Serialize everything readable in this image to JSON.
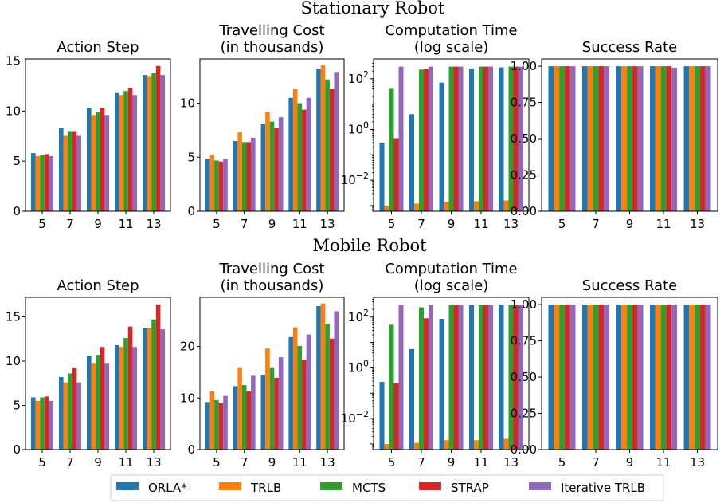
{
  "figure": {
    "row_titles": [
      "Stationary Robot",
      "Mobile Robot"
    ],
    "panel_titles": [
      [
        "Action Step"
      ],
      [
        "Travelling Cost",
        "(in thousands)"
      ],
      [
        "Computation Time",
        "(log scale)"
      ],
      [
        "Success Rate"
      ]
    ]
  },
  "legend": [
    {
      "name": "ORLA*",
      "color": "#1f77b4"
    },
    {
      "name": "TRLB",
      "color": "#ff7f0e"
    },
    {
      "name": "MCTS",
      "color": "#2ca02c"
    },
    {
      "name": "STRAP",
      "color": "#d62728"
    },
    {
      "name": "Iterative TRLB",
      "color": "#9467bd"
    }
  ],
  "chart_data": [
    {
      "type": "bar",
      "row": "Stationary Robot",
      "title": "Action Step",
      "xlabel": "",
      "ylabel": "",
      "categories": [
        "5",
        "7",
        "9",
        "11",
        "13"
      ],
      "ylim": [
        0,
        15.2
      ],
      "yticks": [
        0,
        5,
        10,
        15
      ],
      "ytick_labels": [
        "0",
        "5",
        "10",
        "15"
      ],
      "series": [
        {
          "name": "ORLA*",
          "values": [
            5.8,
            8.3,
            10.3,
            11.8,
            13.6
          ]
        },
        {
          "name": "TRLB",
          "values": [
            5.5,
            7.6,
            9.6,
            11.6,
            13.5
          ]
        },
        {
          "name": "MCTS",
          "values": [
            5.6,
            8.0,
            9.9,
            12.0,
            13.8
          ]
        },
        {
          "name": "STRAP",
          "values": [
            5.7,
            8.0,
            10.3,
            12.3,
            14.5
          ]
        },
        {
          "name": "Iterative TRLB",
          "values": [
            5.5,
            7.6,
            9.6,
            11.6,
            13.6
          ]
        }
      ]
    },
    {
      "type": "bar",
      "row": "Stationary Robot",
      "title": "Travelling Cost (in thousands)",
      "xlabel": "",
      "ylabel": "",
      "categories": [
        "5",
        "7",
        "9",
        "11",
        "13"
      ],
      "ylim": [
        0,
        14.1
      ],
      "yticks": [
        0,
        5,
        10
      ],
      "ytick_labels": [
        "0",
        "5",
        "10"
      ],
      "series": [
        {
          "name": "ORLA*",
          "values": [
            4.8,
            6.5,
            8.1,
            10.5,
            13.2
          ]
        },
        {
          "name": "TRLB",
          "values": [
            5.2,
            7.3,
            9.2,
            11.3,
            13.5
          ]
        },
        {
          "name": "MCTS",
          "values": [
            4.7,
            6.4,
            8.3,
            10.0,
            12.2
          ]
        },
        {
          "name": "STRAP",
          "values": [
            4.6,
            6.4,
            7.7,
            9.4,
            11.3
          ]
        },
        {
          "name": "Iterative TRLB",
          "values": [
            4.8,
            6.8,
            8.7,
            10.5,
            12.9
          ]
        }
      ]
    },
    {
      "type": "bar",
      "row": "Stationary Robot",
      "title": "Computation Time (log scale)",
      "xlabel": "",
      "ylabel": "",
      "yscale": "log",
      "categories": [
        "5",
        "7",
        "9",
        "11",
        "13"
      ],
      "ylim": [
        0.0006,
        600
      ],
      "yticks": [
        0.01,
        1,
        100
      ],
      "ytick_labels": [
        "10^-2",
        "10^0",
        "10^2"
      ],
      "series": [
        {
          "name": "ORLA*",
          "values": [
            0.3,
            4,
            70,
            250,
            280
          ]
        },
        {
          "name": "TRLB",
          "values": [
            0.001,
            0.0012,
            0.0014,
            0.0015,
            0.0016
          ]
        },
        {
          "name": "MCTS",
          "values": [
            40,
            230,
            300,
            300,
            300
          ]
        },
        {
          "name": "STRAP",
          "values": [
            0.45,
            240,
            300,
            300,
            300
          ]
        },
        {
          "name": "Iterative TRLB",
          "values": [
            300,
            300,
            300,
            300,
            300
          ]
        }
      ]
    },
    {
      "type": "bar",
      "row": "Stationary Robot",
      "title": "Success Rate",
      "xlabel": "",
      "ylabel": "",
      "categories": [
        "5",
        "7",
        "9",
        "11",
        "13"
      ],
      "ylim": [
        0,
        1.05
      ],
      "yticks": [
        0,
        0.25,
        0.5,
        0.75,
        1.0
      ],
      "ytick_labels": [
        "0.00",
        "0.25",
        "0.50",
        "0.75",
        "1.00"
      ],
      "series": [
        {
          "name": "ORLA*",
          "values": [
            1.0,
            1.0,
            1.0,
            1.0,
            1.0
          ]
        },
        {
          "name": "TRLB",
          "values": [
            1.0,
            1.0,
            1.0,
            1.0,
            1.0
          ]
        },
        {
          "name": "MCTS",
          "values": [
            1.0,
            1.0,
            1.0,
            1.0,
            1.0
          ]
        },
        {
          "name": "STRAP",
          "values": [
            1.0,
            1.0,
            1.0,
            1.0,
            1.0
          ]
        },
        {
          "name": "Iterative TRLB",
          "values": [
            1.0,
            1.0,
            1.0,
            0.99,
            1.0
          ]
        }
      ]
    },
    {
      "type": "bar",
      "row": "Mobile Robot",
      "title": "Action Step",
      "xlabel": "",
      "ylabel": "",
      "categories": [
        "5",
        "7",
        "9",
        "11",
        "13"
      ],
      "ylim": [
        0,
        17.2
      ],
      "yticks": [
        0,
        5,
        10,
        15
      ],
      "ytick_labels": [
        "0",
        "5",
        "10",
        "15"
      ],
      "series": [
        {
          "name": "ORLA*",
          "values": [
            5.9,
            8.2,
            10.6,
            11.8,
            13.7
          ]
        },
        {
          "name": "TRLB",
          "values": [
            5.5,
            7.6,
            9.7,
            11.6,
            13.7
          ]
        },
        {
          "name": "MCTS",
          "values": [
            5.9,
            8.6,
            10.7,
            12.6,
            14.7
          ]
        },
        {
          "name": "STRAP",
          "values": [
            6.0,
            9.2,
            11.6,
            13.9,
            16.4
          ]
        },
        {
          "name": "Iterative TRLB",
          "values": [
            5.5,
            7.6,
            9.7,
            11.6,
            13.6
          ]
        }
      ]
    },
    {
      "type": "bar",
      "row": "Mobile Robot",
      "title": "Travelling Cost (in thousands)",
      "xlabel": "",
      "ylabel": "",
      "categories": [
        "5",
        "7",
        "9",
        "11",
        "13"
      ],
      "ylim": [
        0,
        29.5
      ],
      "yticks": [
        0,
        10,
        20
      ],
      "ytick_labels": [
        "0",
        "10",
        "20"
      ],
      "series": [
        {
          "name": "ORLA*",
          "values": [
            9.2,
            12.3,
            14.5,
            21.8,
            27.8
          ]
        },
        {
          "name": "TRLB",
          "values": [
            11.3,
            15.8,
            19.6,
            23.7,
            28.3
          ]
        },
        {
          "name": "MCTS",
          "values": [
            9.6,
            12.5,
            15.8,
            20.1,
            24.4
          ]
        },
        {
          "name": "STRAP",
          "values": [
            9.0,
            11.3,
            13.9,
            17.4,
            21.5
          ]
        },
        {
          "name": "Iterative TRLB",
          "values": [
            10.4,
            14.3,
            17.9,
            22.3,
            26.8
          ]
        }
      ]
    },
    {
      "type": "bar",
      "row": "Mobile Robot",
      "title": "Computation Time (log scale)",
      "xlabel": "",
      "ylabel": "",
      "yscale": "log",
      "categories": [
        "5",
        "7",
        "9",
        "11",
        "13"
      ],
      "ylim": [
        0.0006,
        600
      ],
      "yticks": [
        0.01,
        1,
        100
      ],
      "ytick_labels": [
        "10^-2",
        "10^0",
        "10^2"
      ],
      "series": [
        {
          "name": "ORLA*",
          "values": [
            0.28,
            5.5,
            85,
            300,
            310
          ]
        },
        {
          "name": "TRLB",
          "values": [
            0.001,
            0.0011,
            0.0014,
            0.0014,
            0.0016
          ]
        },
        {
          "name": "MCTS",
          "values": [
            50,
            240,
            300,
            300,
            300
          ]
        },
        {
          "name": "STRAP",
          "values": [
            0.25,
            90,
            290,
            300,
            300
          ]
        },
        {
          "name": "Iterative TRLB",
          "values": [
            300,
            300,
            300,
            300,
            300
          ]
        }
      ]
    },
    {
      "type": "bar",
      "row": "Mobile Robot",
      "title": "Success Rate",
      "xlabel": "",
      "ylabel": "",
      "categories": [
        "5",
        "7",
        "9",
        "11",
        "13"
      ],
      "ylim": [
        0,
        1.05
      ],
      "yticks": [
        0,
        0.25,
        0.5,
        0.75,
        1.0
      ],
      "ytick_labels": [
        "0.00",
        "0.25",
        "0.50",
        "0.75",
        "1.00"
      ],
      "series": [
        {
          "name": "ORLA*",
          "values": [
            1.0,
            1.0,
            1.0,
            1.0,
            1.0
          ]
        },
        {
          "name": "TRLB",
          "values": [
            1.0,
            1.0,
            1.0,
            1.0,
            1.0
          ]
        },
        {
          "name": "MCTS",
          "values": [
            1.0,
            1.0,
            1.0,
            1.0,
            1.0
          ]
        },
        {
          "name": "STRAP",
          "values": [
            1.0,
            1.0,
            1.0,
            1.0,
            1.0
          ]
        },
        {
          "name": "Iterative TRLB",
          "values": [
            1.0,
            1.0,
            1.0,
            1.0,
            1.0
          ]
        }
      ]
    }
  ]
}
